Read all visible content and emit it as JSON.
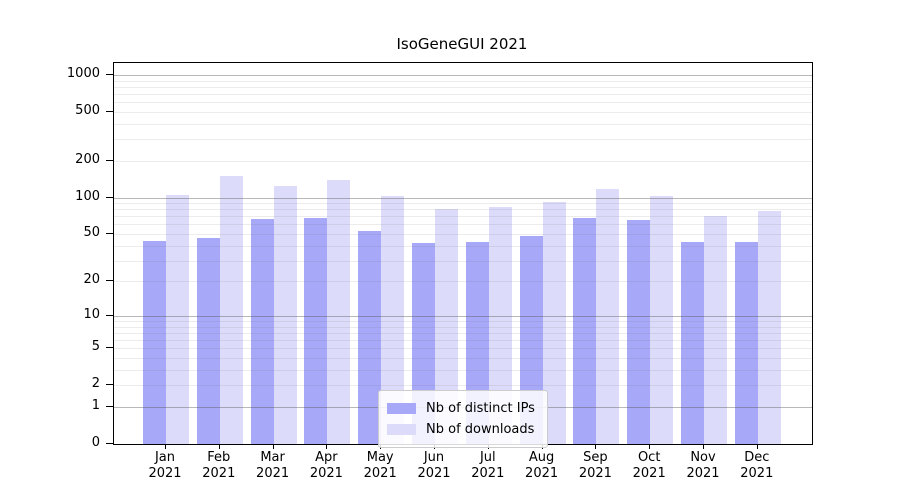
{
  "title": "IsoGeneGUI 2021",
  "colors": {
    "ips_bar": "#a8a8f8",
    "downloads_bar": "#dcdcfa",
    "grid_major": "rgba(85,85,85,0.42)",
    "grid_minor": "rgba(110,110,110,0.13)",
    "axis": "#000000",
    "legend_border": "#cccccc"
  },
  "x_axis": {
    "months": [
      "Jan",
      "Feb",
      "Mar",
      "Apr",
      "May",
      "Jun",
      "Jul",
      "Aug",
      "Sep",
      "Oct",
      "Nov",
      "Dec"
    ],
    "year": "2021"
  },
  "legend": {
    "items": [
      "Nb of distinct IPs",
      "Nb of downloads"
    ]
  },
  "chart_data": {
    "type": "bar",
    "title": "IsoGeneGUI 2021",
    "categories": [
      "Jan 2021",
      "Feb 2021",
      "Mar 2021",
      "Apr 2021",
      "May 2021",
      "Jun 2021",
      "Jul 2021",
      "Aug 2021",
      "Sep 2021",
      "Oct 2021",
      "Nov 2021",
      "Dec 2021"
    ],
    "series": [
      {
        "name": "Nb of distinct IPs",
        "color": "#a8a8f8",
        "values": [
          44,
          46,
          66,
          68,
          53,
          42,
          43,
          48,
          68,
          65,
          43,
          43
        ]
      },
      {
        "name": "Nb of downloads",
        "color": "#dcdcfa",
        "values": [
          104,
          150,
          125,
          140,
          102,
          80,
          83,
          92,
          118,
          103,
          71,
          78
        ]
      }
    ],
    "xlabel": "",
    "ylabel": "",
    "y_scale": "log(value+1)",
    "y_ticks": [
      0,
      1,
      2,
      5,
      10,
      20,
      50,
      100,
      200,
      500,
      1000
    ],
    "ylim": [
      0,
      1100
    ],
    "grid": {
      "orientation": "horizontal",
      "major_values": [
        1,
        10,
        100,
        1000
      ],
      "minor_values": [
        2,
        3,
        4,
        5,
        6,
        7,
        8,
        9,
        20,
        30,
        40,
        50,
        60,
        70,
        80,
        90,
        200,
        300,
        400,
        500,
        600,
        700,
        800,
        900
      ]
    },
    "legend_position": "inside lower center-right",
    "bar_grouping": "2 bars per month, touching, gap between months"
  }
}
